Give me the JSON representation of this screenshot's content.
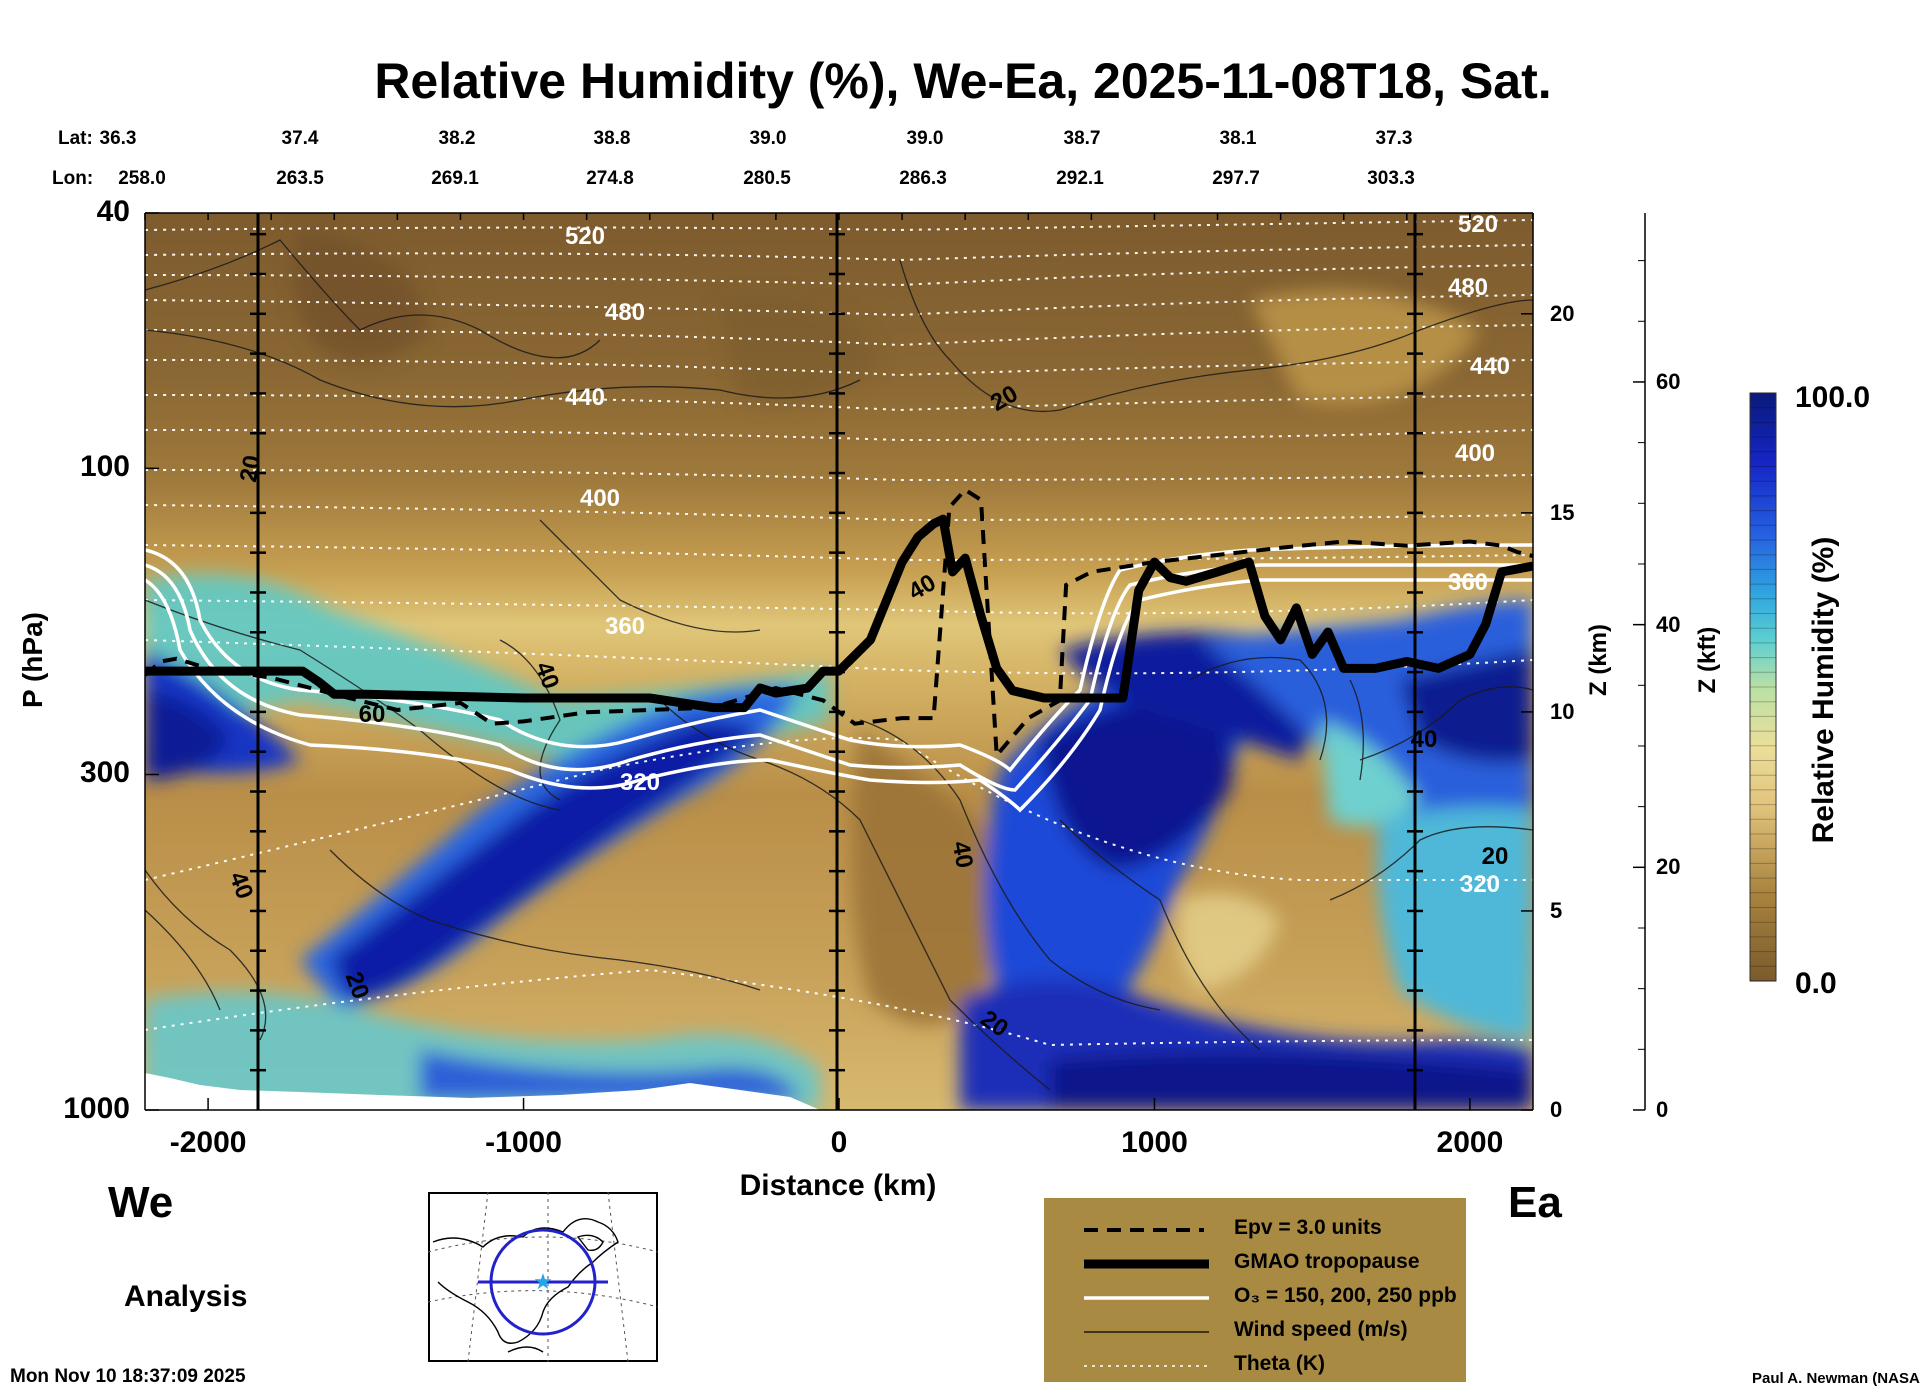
{
  "chart_data": {
    "type": "heatmap",
    "title": "Relative Humidity (%), We-Ea, 2025-11-08T18, Sat.",
    "xlabel": "Distance (km)",
    "ylabel": "P (hPa)",
    "ylabel_right_km": "Z (km)",
    "ylabel_right_kft": "Z (kft)",
    "xlim": [
      -2200,
      2200
    ],
    "ylim": [
      1000,
      40
    ],
    "x_ticks": [
      -2000,
      -1000,
      0,
      1000,
      2000
    ],
    "x_tick_labels": [
      "-2000",
      "-1000",
      "0",
      "1000",
      "2000"
    ],
    "y_ticks": [
      40,
      100,
      300,
      1000
    ],
    "y_tick_labels": [
      "40",
      "100",
      "300",
      "1000"
    ],
    "z_km_ticks": [
      0,
      5,
      10,
      15,
      20
    ],
    "z_km_labels": [
      "0",
      "5",
      "10",
      "15",
      "20"
    ],
    "z_kft_ticks": [
      0,
      20,
      40,
      60
    ],
    "z_kft_labels": [
      "0",
      "20",
      "40",
      "60"
    ],
    "lat_label": "Lat:",
    "lon_label": "Lon:",
    "lat_values": [
      "36.3",
      "37.4",
      "38.2",
      "38.8",
      "39.0",
      "39.0",
      "38.7",
      "38.1",
      "37.3"
    ],
    "lon_values": [
      "258.0",
      "263.5",
      "269.1",
      "274.8",
      "280.5",
      "286.3",
      "292.1",
      "297.7",
      "303.3"
    ],
    "west_label": "We",
    "east_label": "Ea",
    "colorbar": {
      "label": "Relative Humidity (%)",
      "min_label": "0.0",
      "max_label": "100.0",
      "min": 0.0,
      "max": 100.0
    },
    "theta_labels": [
      "520",
      "480",
      "440",
      "400",
      "360",
      "320",
      "520",
      "480",
      "440",
      "400",
      "360",
      "320"
    ],
    "wind_labels": [
      "20",
      "40",
      "60",
      "40",
      "20",
      "20",
      "40",
      "20",
      "40",
      "20",
      "40"
    ],
    "tropopause": {
      "x": [
        -2200,
        -1700,
        -1650,
        -1600,
        -1500,
        -1000,
        -600,
        -400,
        -300,
        -250,
        -200,
        -100,
        -50,
        0,
        100,
        200,
        250,
        300,
        330,
        360,
        400,
        450,
        500,
        550,
        650,
        750,
        900,
        950,
        1000,
        1050,
        1100,
        1200,
        1300,
        1350,
        1400,
        1450,
        1500,
        1550,
        1600,
        1700,
        1800,
        1900,
        2000,
        2050,
        2100,
        2200
      ],
      "p": [
        207,
        207,
        215,
        225,
        225,
        228,
        228,
        236,
        236,
        220,
        224,
        220,
        207,
        207,
        185,
        140,
        128,
        122,
        120,
        145,
        138,
        170,
        205,
        222,
        228,
        228,
        228,
        155,
        140,
        148,
        150,
        145,
        140,
        170,
        185,
        165,
        195,
        180,
        205,
        205,
        200,
        205,
        195,
        175,
        145,
        142
      ]
    },
    "epv_3": {
      "x": [
        -2200,
        -2150,
        -2100,
        -2000,
        -1800,
        -1600,
        -1400,
        -1200,
        -1100,
        -1000,
        -800,
        -600,
        -400,
        -200,
        -50,
        50,
        200,
        300,
        350,
        400,
        450,
        500,
        600,
        700,
        720,
        800,
        1000,
        1400,
        1600,
        1800,
        2000,
        2100,
        2150,
        2200
      ],
      "p": [
        210,
        200,
        198,
        205,
        212,
        225,
        238,
        232,
        250,
        248,
        240,
        238,
        236,
        220,
        230,
        250,
        245,
        245,
        115,
        108,
        112,
        280,
        245,
        230,
        152,
        145,
        140,
        133,
        130,
        132,
        130,
        132,
        135,
        137
      ]
    },
    "ozone_contours_ppb": [
      150,
      200,
      250
    ],
    "legend": [
      {
        "label": "Epv = 3.0 units",
        "style": "dashed-black"
      },
      {
        "label": "GMAO tropopause",
        "style": "thick-black"
      },
      {
        "label": "O₃ = 150, 200, 250 ppb",
        "style": "white"
      },
      {
        "label": "Wind speed (m/s)",
        "style": "thin-black"
      },
      {
        "label": "Theta (K)",
        "style": "dotted-white"
      }
    ]
  },
  "footer": {
    "analysis_label": "Analysis",
    "timestamp": "Mon Nov 10 18:37:09 2025",
    "credit": "Paul A. Newman (NASA"
  },
  "colors": {
    "dry_dark": "#7f5e30",
    "dry": "#9f7b3c",
    "mid_dry": "#c89e54",
    "light": "#e7d187",
    "moist": "#5fc7c9",
    "wet": "#2f62de",
    "saturated": "#0e1aa2",
    "legend_bg": "#a98a43"
  }
}
